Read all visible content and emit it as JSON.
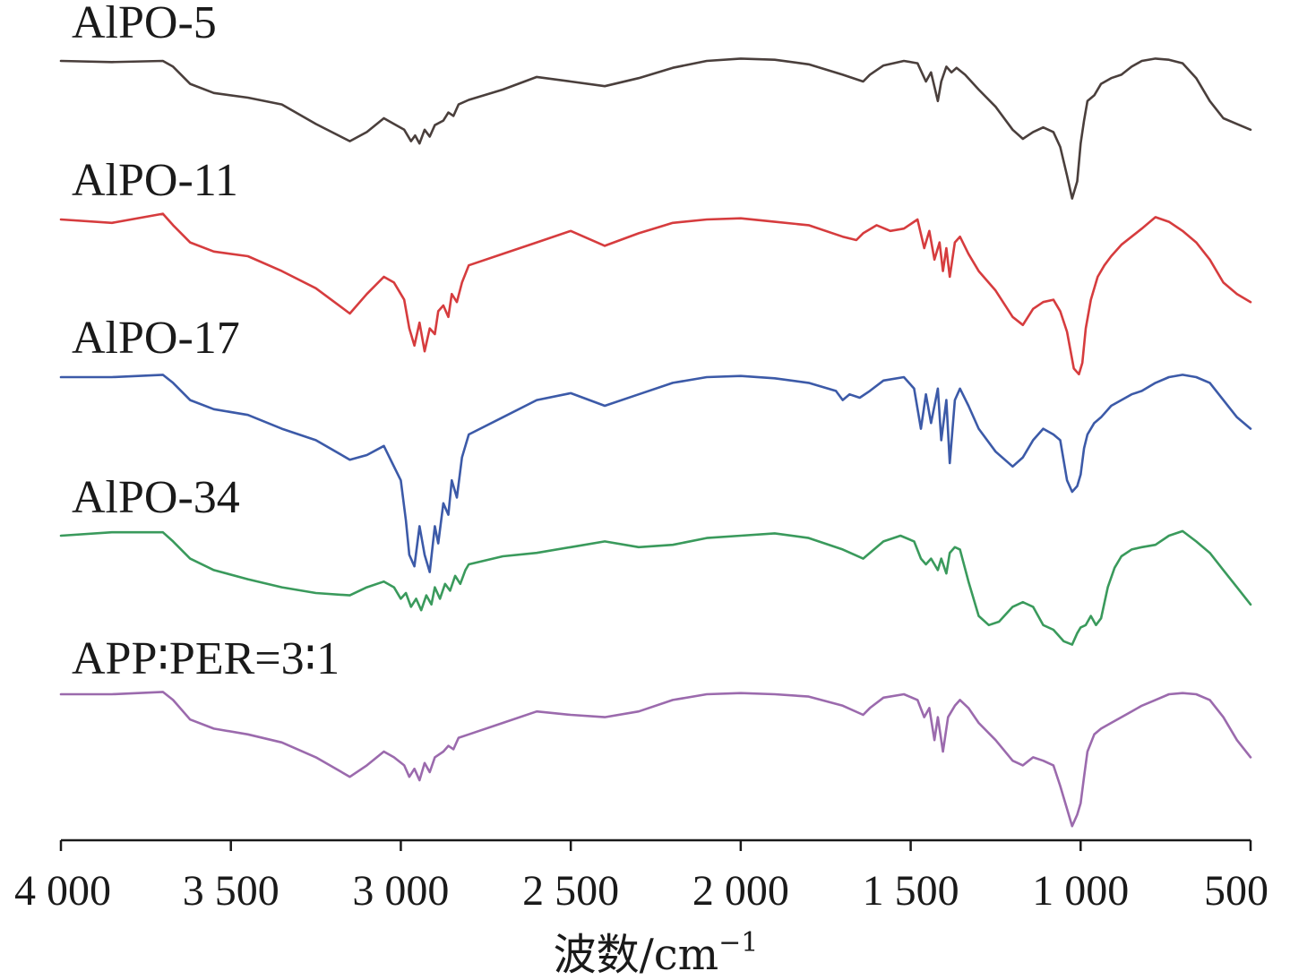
{
  "chart_data": {
    "type": "line",
    "title": "",
    "xlabel": "波数/cm",
    "xlabel_sup": "−1",
    "ylabel": "",
    "x_reversed": true,
    "xlim": [
      4000,
      500
    ],
    "xticks": [
      4000,
      3500,
      3000,
      2500,
      2000,
      1500,
      1000,
      500
    ],
    "xtick_labels": [
      "4 000",
      "3 500",
      "3 000",
      "2 500",
      "2 000",
      "1 500",
      "1 000",
      "500"
    ],
    "grid": false,
    "legend": "labels above each curve (stacked, offset)",
    "series": [
      {
        "name": "AlPO-5",
        "color": "#4a3f3c",
        "x": [
          4000,
          3850,
          3700,
          3670,
          3620,
          3550,
          3450,
          3350,
          3250,
          3150,
          3100,
          3050,
          3020,
          2990,
          2970,
          2958,
          2945,
          2930,
          2915,
          2900,
          2875,
          2860,
          2845,
          2830,
          2800,
          2700,
          2600,
          2500,
          2400,
          2300,
          2200,
          2100,
          2000,
          1900,
          1800,
          1700,
          1640,
          1620,
          1580,
          1520,
          1480,
          1455,
          1440,
          1420,
          1410,
          1395,
          1380,
          1365,
          1340,
          1300,
          1250,
          1200,
          1170,
          1140,
          1110,
          1080,
          1060,
          1040,
          1025,
          1010,
          1000,
          990,
          980,
          960,
          940,
          910,
          880,
          850,
          820,
          780,
          740,
          700,
          660,
          620,
          580,
          540,
          500
        ],
        "y": [
          0.0,
          -0.01,
          0.0,
          -0.05,
          -0.2,
          -0.28,
          -0.32,
          -0.38,
          -0.55,
          -0.7,
          -0.62,
          -0.5,
          -0.55,
          -0.6,
          -0.7,
          -0.65,
          -0.72,
          -0.6,
          -0.66,
          -0.56,
          -0.52,
          -0.45,
          -0.48,
          -0.38,
          -0.34,
          -0.25,
          -0.14,
          -0.18,
          -0.22,
          -0.15,
          -0.06,
          0.0,
          0.02,
          0.01,
          -0.03,
          -0.12,
          -0.18,
          -0.12,
          -0.04,
          0.0,
          -0.02,
          -0.18,
          -0.1,
          -0.35,
          -0.18,
          -0.05,
          -0.1,
          -0.06,
          -0.12,
          -0.25,
          -0.4,
          -0.6,
          -0.68,
          -0.62,
          -0.58,
          -0.62,
          -0.75,
          -1.0,
          -1.2,
          -1.05,
          -0.72,
          -0.52,
          -0.35,
          -0.3,
          -0.2,
          -0.15,
          -0.12,
          -0.05,
          0.0,
          0.02,
          0.01,
          -0.02,
          -0.15,
          -0.35,
          -0.5,
          -0.55,
          -0.6
        ]
      },
      {
        "name": "AlPO-11",
        "color": "#d63c3e",
        "x": [
          4000,
          3850,
          3700,
          3670,
          3620,
          3550,
          3450,
          3350,
          3250,
          3150,
          3100,
          3050,
          3020,
          2990,
          2975,
          2960,
          2945,
          2930,
          2915,
          2900,
          2890,
          2875,
          2860,
          2850,
          2835,
          2820,
          2800,
          2700,
          2600,
          2500,
          2400,
          2300,
          2200,
          2100,
          2000,
          1900,
          1800,
          1700,
          1660,
          1640,
          1600,
          1560,
          1520,
          1480,
          1460,
          1445,
          1430,
          1415,
          1405,
          1395,
          1385,
          1370,
          1355,
          1330,
          1300,
          1250,
          1200,
          1170,
          1140,
          1110,
          1080,
          1060,
          1040,
          1020,
          1005,
          995,
          985,
          970,
          950,
          930,
          910,
          880,
          850,
          820,
          780,
          740,
          700,
          660,
          620,
          580,
          540,
          500
        ],
        "y": [
          0.0,
          -0.03,
          0.05,
          -0.05,
          -0.2,
          -0.28,
          -0.32,
          -0.45,
          -0.6,
          -0.82,
          -0.65,
          -0.5,
          -0.55,
          -0.7,
          -0.95,
          -1.1,
          -0.9,
          -1.15,
          -0.95,
          -1.0,
          -0.8,
          -0.75,
          -0.85,
          -0.65,
          -0.72,
          -0.55,
          -0.4,
          -0.3,
          -0.2,
          -0.1,
          -0.23,
          -0.12,
          -0.03,
          0.0,
          0.01,
          -0.02,
          -0.05,
          -0.15,
          -0.18,
          -0.12,
          -0.05,
          -0.1,
          -0.08,
          0.0,
          -0.25,
          -0.1,
          -0.35,
          -0.2,
          -0.45,
          -0.25,
          -0.5,
          -0.2,
          -0.15,
          -0.3,
          -0.45,
          -0.62,
          -0.85,
          -0.92,
          -0.78,
          -0.72,
          -0.7,
          -0.8,
          -0.98,
          -1.3,
          -1.35,
          -1.25,
          -0.95,
          -0.7,
          -0.5,
          -0.4,
          -0.32,
          -0.22,
          -0.15,
          -0.08,
          0.02,
          -0.02,
          -0.1,
          -0.2,
          -0.35,
          -0.55,
          -0.65,
          -0.72
        ]
      },
      {
        "name": "AlPO-17",
        "color": "#3c5aa8",
        "x": [
          4000,
          3850,
          3700,
          3670,
          3620,
          3550,
          3450,
          3350,
          3250,
          3150,
          3100,
          3050,
          3025,
          3000,
          2985,
          2975,
          2960,
          2945,
          2930,
          2915,
          2900,
          2890,
          2875,
          2860,
          2850,
          2835,
          2820,
          2800,
          2700,
          2600,
          2500,
          2400,
          2300,
          2200,
          2100,
          2000,
          1900,
          1800,
          1720,
          1700,
          1680,
          1650,
          1620,
          1580,
          1520,
          1490,
          1470,
          1455,
          1440,
          1420,
          1410,
          1395,
          1385,
          1370,
          1355,
          1330,
          1300,
          1250,
          1200,
          1170,
          1140,
          1110,
          1080,
          1060,
          1040,
          1025,
          1010,
          1000,
          990,
          980,
          960,
          940,
          910,
          880,
          850,
          820,
          780,
          740,
          700,
          660,
          620,
          580,
          540,
          500
        ],
        "y": [
          0.0,
          0.0,
          0.02,
          -0.05,
          -0.2,
          -0.28,
          -0.33,
          -0.45,
          -0.55,
          -0.72,
          -0.68,
          -0.6,
          -0.75,
          -0.9,
          -1.25,
          -1.55,
          -1.65,
          -1.3,
          -1.55,
          -1.7,
          -1.3,
          -1.45,
          -1.1,
          -1.2,
          -0.9,
          -1.05,
          -0.7,
          -0.5,
          -0.35,
          -0.2,
          -0.14,
          -0.25,
          -0.15,
          -0.05,
          0.0,
          0.01,
          -0.01,
          -0.05,
          -0.12,
          -0.2,
          -0.15,
          -0.18,
          -0.12,
          -0.03,
          0.0,
          -0.1,
          -0.45,
          -0.15,
          -0.4,
          -0.1,
          -0.55,
          -0.2,
          -0.75,
          -0.2,
          -0.1,
          -0.25,
          -0.45,
          -0.65,
          -0.78,
          -0.7,
          -0.55,
          -0.45,
          -0.5,
          -0.55,
          -0.9,
          -1.0,
          -0.95,
          -0.85,
          -0.62,
          -0.5,
          -0.4,
          -0.35,
          -0.25,
          -0.2,
          -0.15,
          -0.12,
          -0.05,
          0.0,
          0.02,
          0.0,
          -0.05,
          -0.2,
          -0.35,
          -0.45
        ]
      },
      {
        "name": "AlPO-34",
        "color": "#3a9a5c",
        "x": [
          4000,
          3850,
          3700,
          3670,
          3620,
          3550,
          3450,
          3350,
          3250,
          3150,
          3100,
          3050,
          3020,
          3000,
          2985,
          2970,
          2955,
          2940,
          2925,
          2910,
          2900,
          2885,
          2870,
          2855,
          2840,
          2825,
          2810,
          2800,
          2700,
          2600,
          2500,
          2400,
          2300,
          2200,
          2100,
          2000,
          1900,
          1800,
          1700,
          1640,
          1620,
          1580,
          1530,
          1490,
          1470,
          1455,
          1440,
          1420,
          1410,
          1395,
          1385,
          1370,
          1355,
          1330,
          1300,
          1270,
          1240,
          1200,
          1170,
          1140,
          1110,
          1080,
          1050,
          1025,
          1010,
          1000,
          985,
          970,
          955,
          940,
          920,
          900,
          880,
          850,
          820,
          780,
          740,
          700,
          660,
          620,
          580,
          540,
          500
        ],
        "y": [
          0.0,
          0.03,
          0.03,
          -0.05,
          -0.2,
          -0.3,
          -0.38,
          -0.45,
          -0.5,
          -0.52,
          -0.45,
          -0.4,
          -0.45,
          -0.55,
          -0.5,
          -0.62,
          -0.55,
          -0.65,
          -0.52,
          -0.6,
          -0.45,
          -0.55,
          -0.42,
          -0.48,
          -0.35,
          -0.42,
          -0.3,
          -0.25,
          -0.18,
          -0.15,
          -0.1,
          -0.05,
          -0.1,
          -0.08,
          -0.02,
          0.0,
          0.02,
          -0.02,
          -0.12,
          -0.2,
          -0.15,
          -0.05,
          0.0,
          -0.05,
          -0.2,
          -0.25,
          -0.2,
          -0.3,
          -0.2,
          -0.33,
          -0.15,
          -0.1,
          -0.12,
          -0.4,
          -0.7,
          -0.78,
          -0.75,
          -0.62,
          -0.58,
          -0.62,
          -0.78,
          -0.82,
          -0.92,
          -0.95,
          -0.85,
          -0.8,
          -0.78,
          -0.7,
          -0.78,
          -0.72,
          -0.45,
          -0.28,
          -0.18,
          -0.12,
          -0.1,
          -0.08,
          0.0,
          0.04,
          -0.05,
          -0.15,
          -0.3,
          -0.45,
          -0.6
        ]
      },
      {
        "name": "APP∶PER=3∶1",
        "color": "#9b6aad",
        "x": [
          4000,
          3850,
          3700,
          3670,
          3620,
          3550,
          3450,
          3350,
          3250,
          3150,
          3100,
          3050,
          3020,
          2990,
          2975,
          2960,
          2945,
          2930,
          2915,
          2900,
          2875,
          2860,
          2845,
          2830,
          2800,
          2700,
          2600,
          2500,
          2400,
          2300,
          2200,
          2100,
          2000,
          1900,
          1800,
          1700,
          1640,
          1620,
          1580,
          1520,
          1480,
          1460,
          1445,
          1430,
          1420,
          1405,
          1390,
          1370,
          1355,
          1330,
          1300,
          1250,
          1200,
          1170,
          1140,
          1110,
          1080,
          1060,
          1040,
          1025,
          1010,
          1000,
          990,
          980,
          960,
          940,
          910,
          880,
          850,
          820,
          780,
          740,
          700,
          660,
          620,
          580,
          540,
          500
        ],
        "y": [
          0.0,
          0.0,
          0.02,
          -0.05,
          -0.22,
          -0.3,
          -0.35,
          -0.42,
          -0.55,
          -0.72,
          -0.62,
          -0.5,
          -0.55,
          -0.62,
          -0.72,
          -0.65,
          -0.75,
          -0.6,
          -0.68,
          -0.55,
          -0.5,
          -0.45,
          -0.48,
          -0.38,
          -0.35,
          -0.25,
          -0.15,
          -0.18,
          -0.2,
          -0.15,
          -0.05,
          0.0,
          0.01,
          0.0,
          -0.02,
          -0.1,
          -0.18,
          -0.12,
          -0.03,
          0.0,
          -0.05,
          -0.2,
          -0.12,
          -0.4,
          -0.2,
          -0.5,
          -0.2,
          -0.1,
          -0.05,
          -0.12,
          -0.25,
          -0.4,
          -0.58,
          -0.62,
          -0.55,
          -0.58,
          -0.62,
          -0.8,
          -1.0,
          -1.15,
          -1.05,
          -0.95,
          -0.72,
          -0.5,
          -0.35,
          -0.3,
          -0.25,
          -0.2,
          -0.15,
          -0.1,
          -0.05,
          0.0,
          0.01,
          0.0,
          -0.05,
          -0.2,
          -0.4,
          -0.55
        ]
      }
    ]
  }
}
